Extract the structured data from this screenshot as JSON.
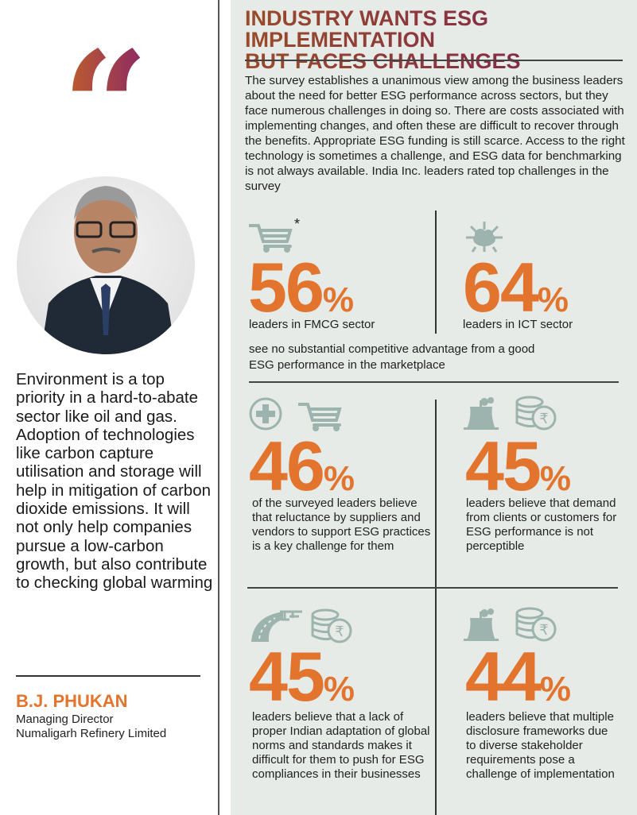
{
  "quote_panel": {
    "quote_mark": "“",
    "quote": "Environment is a top priority in a hard-to-abate sector like oil and gas. Adoption of technologies like carbon capture utilisation and storage will help in mitigation of carbon dioxide emissions. It will not only help companies pursue a low-carbon growth, but also contribute to checking global warming",
    "name": "B.J. PHUKAN",
    "designation": "Managing Director",
    "company": "Numaligarh Refinery Limited"
  },
  "article": {
    "title_line1": "INDUSTRY WANTS ESG IMPLEMENTATION",
    "title_line2": "BUT FACES CHALLENGES",
    "intro": "The survey establishes a unanimous view among the business leaders about the need for better ESG performance across sectors, but they face numerous challenges in doing so. There are costs associated with implementing changes, and often these are difficult to recover through the benefits. Appropriate ESG funding is still scarce. Access to the right technology is sometimes a challenge, and ESG data for benchmarking is not always available. India Inc. leaders rated top challenges in the survey",
    "asterisk": "*",
    "shared_note": "see no substantial competitive advantage from a good ESG performance in the marketplace",
    "stats": [
      {
        "value": "56",
        "unit": "%",
        "text": "leaders in FMCG sector",
        "icons": [
          "shopping-cart-icon"
        ]
      },
      {
        "value": "64",
        "unit": "%",
        "text": "leaders in ICT sector",
        "icons": [
          "cloud-network-icon"
        ]
      },
      {
        "value": "46",
        "unit": "%",
        "text": "of the surveyed leaders believe that reluctance by suppliers and vendors to support ESG practices is a key challenge for them",
        "icons": [
          "medical-cross-icon",
          "shopping-cart-icon"
        ]
      },
      {
        "value": "45",
        "unit": "%",
        "text": "leaders believe that demand from clients or customers for ESG performance is not perceptible",
        "icons": [
          "factory-icon",
          "rupee-coins-icon"
        ]
      },
      {
        "value": "45",
        "unit": "%",
        "text": "leaders believe that a lack of proper Indian adaptation of global norms and standards makes it difficult for them to push for ESG compliances in their businesses",
        "icons": [
          "road-icon",
          "rupee-coins-icon"
        ]
      },
      {
        "value": "44",
        "unit": "%",
        "text": "leaders believe that multiple disclosure frameworks due to diverse stakeholder requirements pose a challenge of implementation",
        "icons": [
          "factory-icon",
          "rupee-coins-icon"
        ]
      }
    ]
  },
  "colors": {
    "accent": "#e2742e",
    "icon": "#9db3ad",
    "panel": "#e6ebe8",
    "title_start": "#9a4b2a",
    "title_end": "#7a1f52"
  }
}
